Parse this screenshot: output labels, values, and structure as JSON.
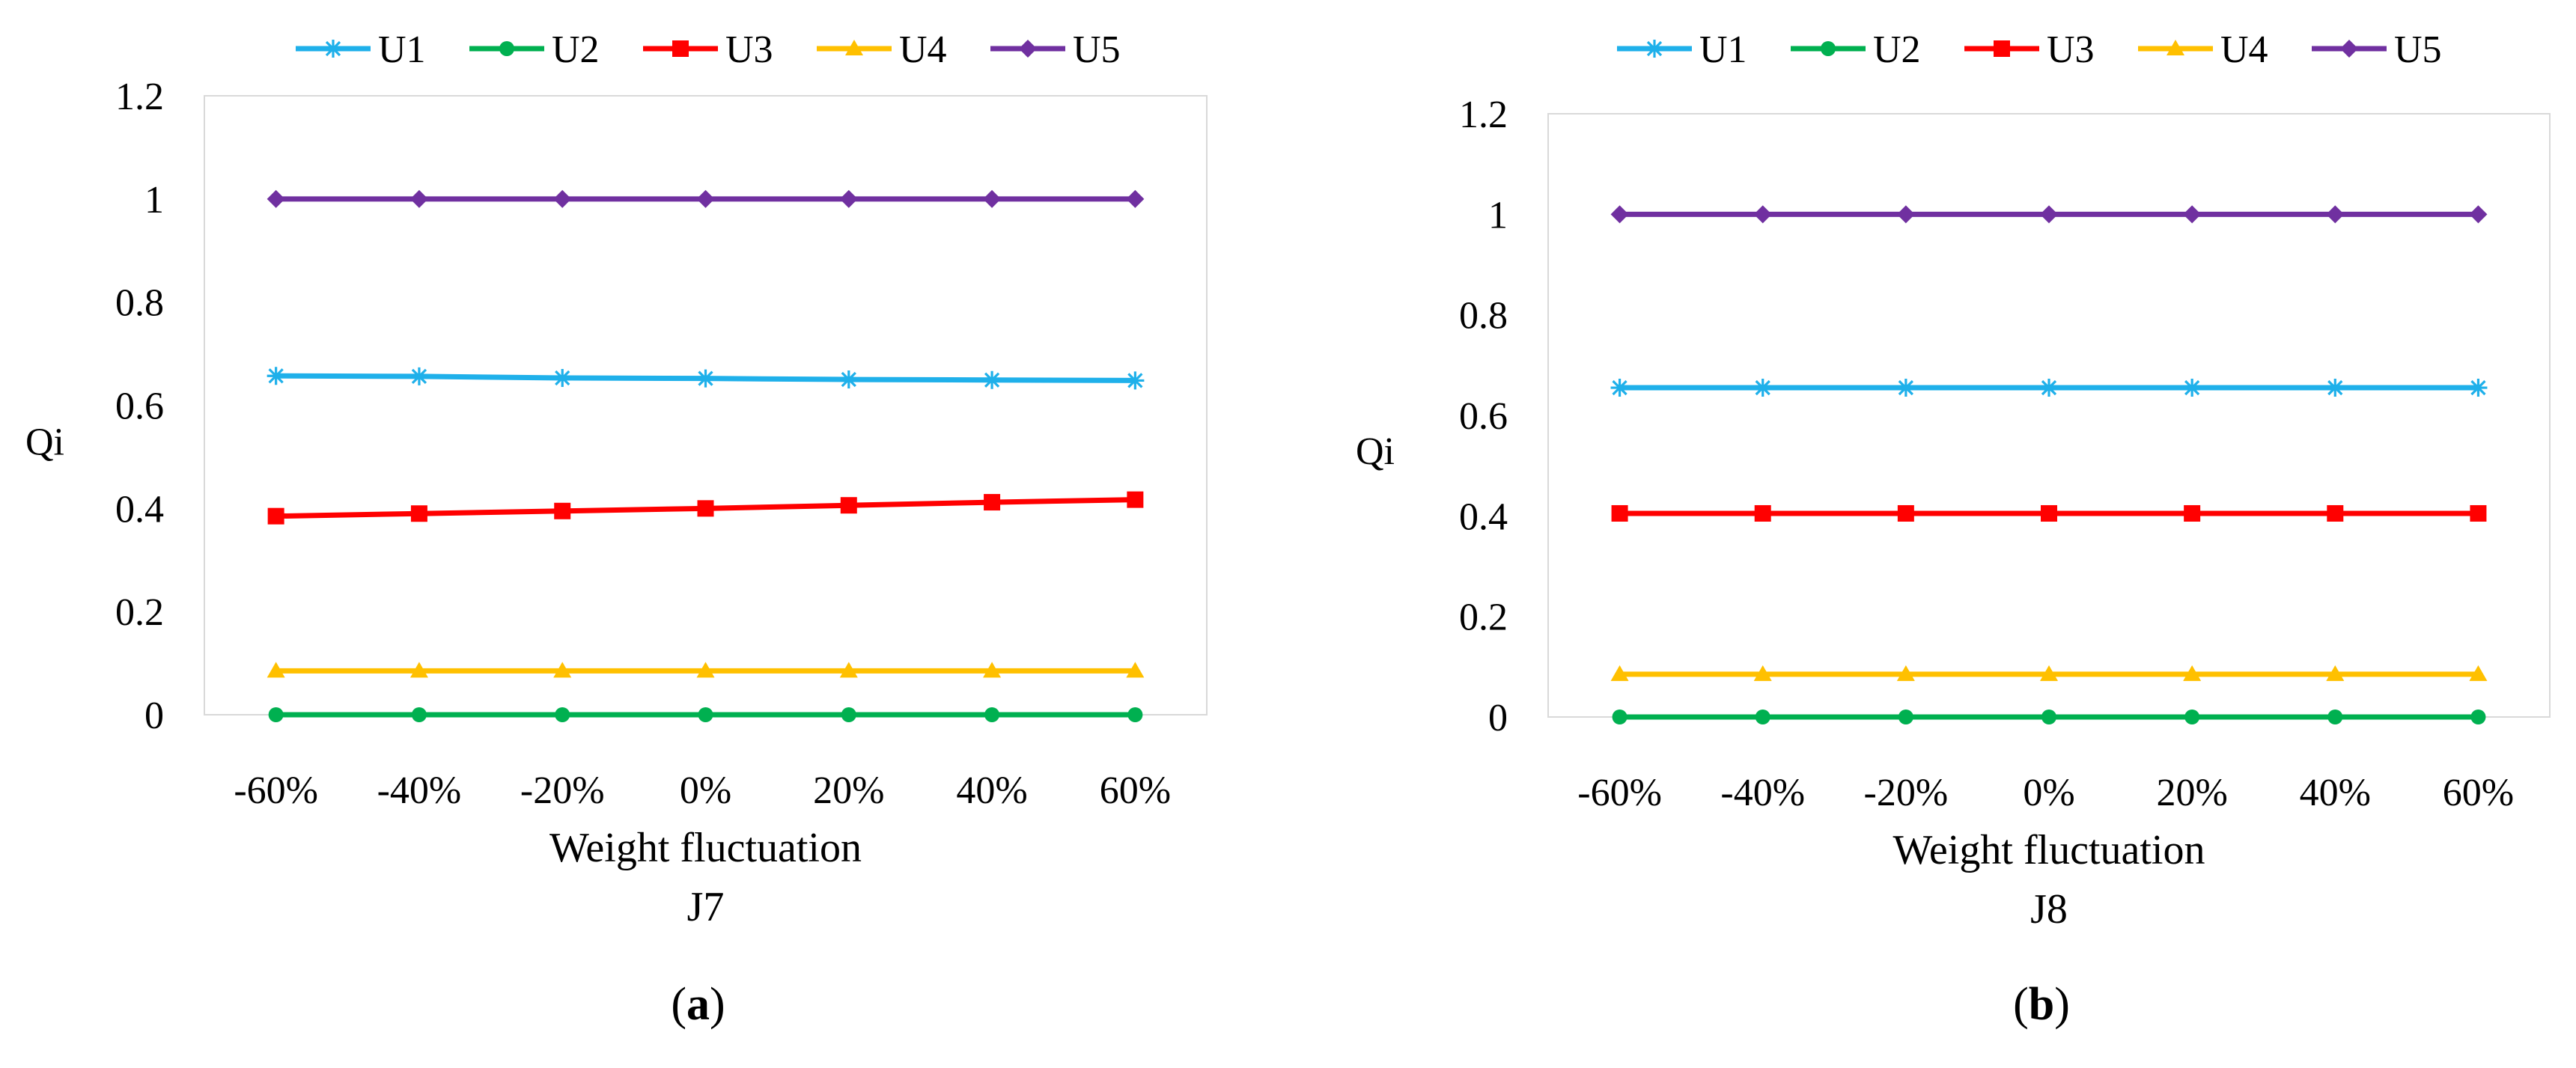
{
  "chart_data": [
    {
      "type": "line",
      "panel_label": "(a)",
      "panel_letter": "a",
      "subtitle": "J7",
      "xlabel": "Weight fluctuation",
      "ylabel": "Qi",
      "categories": [
        "-60%",
        "-40%",
        "-20%",
        "0%",
        "20%",
        "40%",
        "60%"
      ],
      "ylim": [
        0,
        1.2
      ],
      "yticks": [
        "0",
        "0.2",
        "0.4",
        "0.6",
        "0.8",
        "1",
        "1.2"
      ],
      "legend_position": "top",
      "grid": false,
      "series": [
        {
          "name": "U1",
          "color": "#1FB0EA",
          "marker": "asterisk",
          "values": [
            0.657,
            0.656,
            0.653,
            0.652,
            0.65,
            0.649,
            0.648
          ]
        },
        {
          "name": "U2",
          "color": "#00B050",
          "marker": "circle",
          "values": [
            0,
            0,
            0,
            0,
            0,
            0,
            0
          ]
        },
        {
          "name": "U3",
          "color": "#FF0000",
          "marker": "square",
          "values": [
            0.385,
            0.39,
            0.395,
            0.4,
            0.406,
            0.412,
            0.417
          ]
        },
        {
          "name": "U4",
          "color": "#FFC000",
          "marker": "triangle",
          "values": [
            0.085,
            0.085,
            0.085,
            0.085,
            0.085,
            0.085,
            0.085
          ]
        },
        {
          "name": "U5",
          "color": "#7030A0",
          "marker": "diamond",
          "values": [
            1,
            1,
            1,
            1,
            1,
            1,
            1
          ]
        }
      ]
    },
    {
      "type": "line",
      "panel_label": "(b)",
      "panel_letter": "b",
      "subtitle": "J8",
      "xlabel": "Weight fluctuation",
      "ylabel": "Qi",
      "categories": [
        "-60%",
        "-40%",
        "-20%",
        "0%",
        "20%",
        "40%",
        "60%"
      ],
      "ylim": [
        0,
        1.2
      ],
      "yticks": [
        "0",
        "0.2",
        "0.4",
        "0.6",
        "0.8",
        "1",
        "1.2"
      ],
      "legend_position": "top",
      "grid": false,
      "series": [
        {
          "name": "U1",
          "color": "#1FB0EA",
          "marker": "asterisk",
          "values": [
            0.655,
            0.655,
            0.655,
            0.655,
            0.655,
            0.655,
            0.655
          ]
        },
        {
          "name": "U2",
          "color": "#00B050",
          "marker": "circle",
          "values": [
            0,
            0,
            0,
            0,
            0,
            0,
            0
          ]
        },
        {
          "name": "U3",
          "color": "#FF0000",
          "marker": "square",
          "values": [
            0.405,
            0.405,
            0.405,
            0.405,
            0.405,
            0.405,
            0.405
          ]
        },
        {
          "name": "U4",
          "color": "#FFC000",
          "marker": "triangle",
          "values": [
            0.085,
            0.085,
            0.085,
            0.085,
            0.085,
            0.085,
            0.085
          ]
        },
        {
          "name": "U5",
          "color": "#7030A0",
          "marker": "diamond",
          "values": [
            1,
            1,
            1,
            1,
            1,
            1,
            1
          ]
        }
      ]
    }
  ]
}
